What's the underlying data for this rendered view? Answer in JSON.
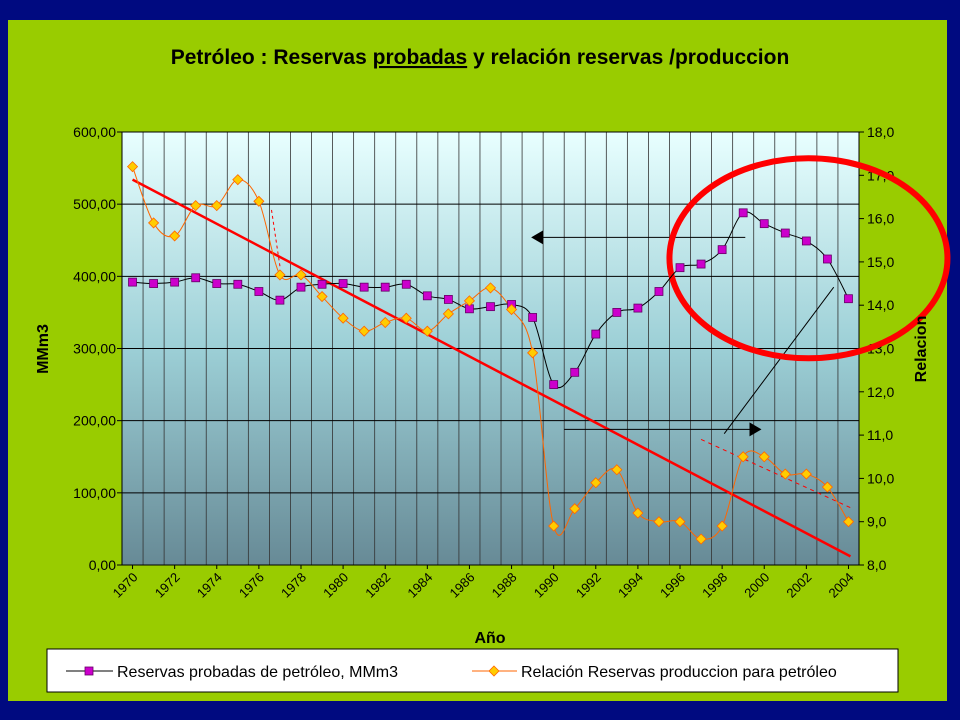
{
  "chart_data": {
    "type": "line",
    "title_parts": [
      "Petróleo : Reservas ",
      "probadas",
      " y relación reservas /produccion"
    ],
    "xlabel": "Año",
    "ylabel_left": "MMm3",
    "ylabel_right": "Relacion",
    "ylim_left": [
      0,
      600
    ],
    "ylim_right": [
      8,
      18
    ],
    "left_ticks": [
      "0,00",
      "100,00",
      "200,00",
      "300,00",
      "400,00",
      "500,00",
      "600,00"
    ],
    "right_ticks": [
      "8,0",
      "9,0",
      "10,0",
      "11,0",
      "12,0",
      "13,0",
      "14,0",
      "15,0",
      "16,0",
      "17,0",
      "18,0"
    ],
    "x_tick_labels": [
      "1970",
      "1972",
      "1974",
      "1976",
      "1978",
      "1980",
      "1982",
      "1984",
      "1986",
      "1988",
      "1990",
      "1992",
      "1994",
      "1996",
      "1998",
      "2000",
      "2002",
      "2004"
    ],
    "years": [
      1970,
      1971,
      1972,
      1973,
      1974,
      1975,
      1976,
      1977,
      1978,
      1979,
      1980,
      1981,
      1982,
      1983,
      1984,
      1985,
      1986,
      1987,
      1988,
      1989,
      1990,
      1991,
      1992,
      1993,
      1994,
      1995,
      1996,
      1997,
      1998,
      1999,
      2000,
      2001,
      2002,
      2003,
      2004
    ],
    "series": [
      {
        "name": "Reservas probadas de petróleo, MMm3",
        "axis": "left",
        "color": "#cc00cc",
        "values": [
          392,
          390,
          392,
          398,
          390,
          389,
          379,
          367,
          385,
          389,
          390,
          385,
          385,
          389,
          373,
          368,
          355,
          358,
          361,
          343,
          250,
          267,
          320,
          350,
          356,
          379,
          412,
          417,
          437,
          488,
          473,
          460,
          449,
          424,
          369
        ]
      },
      {
        "name": "Relación Reservas produccion para petróleo",
        "axis": "right",
        "color": "#ff6600",
        "values": [
          17.2,
          15.9,
          15.6,
          16.3,
          16.3,
          16.9,
          16.4,
          14.7,
          14.7,
          14.2,
          13.7,
          13.4,
          13.6,
          13.7,
          13.4,
          13.8,
          14.1,
          14.4,
          13.9,
          12.9,
          8.9,
          9.3,
          9.9,
          10.2,
          9.2,
          9.0,
          9.0,
          8.6,
          8.9,
          10.5,
          10.5,
          10.1,
          10.1,
          9.8,
          9.0
        ]
      }
    ],
    "grid": true,
    "legend_position": "bottom"
  },
  "colors": {
    "background": "#000a80",
    "frame": "#99cc00",
    "annotation_red": "#ff0000",
    "series_magenta": "#cc00cc",
    "series_orange": "#ff6600"
  }
}
